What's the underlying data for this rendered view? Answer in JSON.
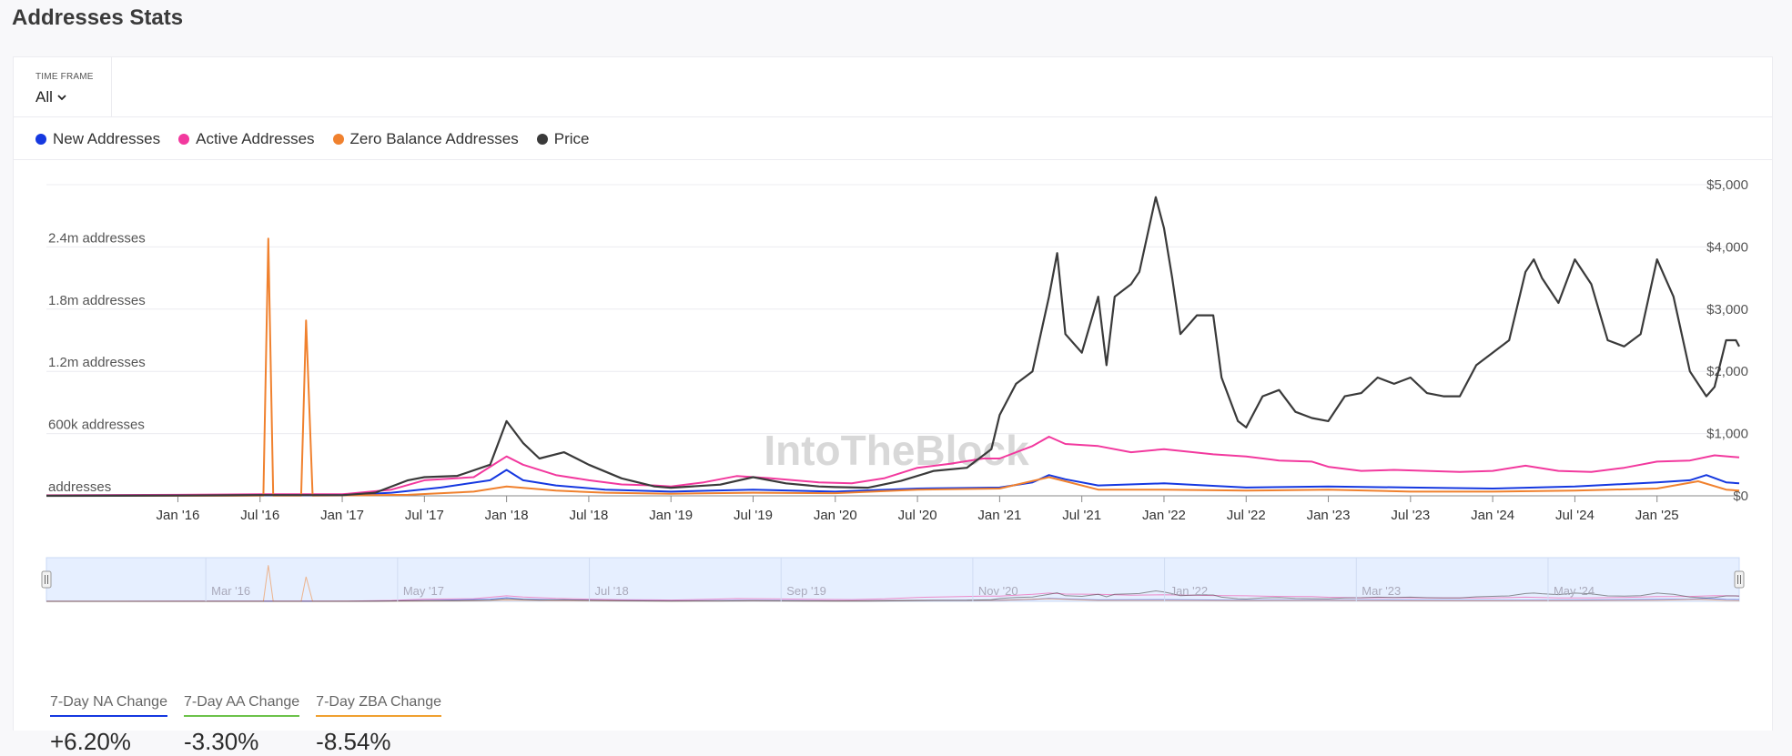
{
  "page": {
    "title": "Addresses Stats"
  },
  "time_frame": {
    "label": "TIME FRAME",
    "value": "All"
  },
  "legend": [
    {
      "label": "New Addresses",
      "color": "#1538e0"
    },
    {
      "label": "Active Addresses",
      "color": "#f2399e"
    },
    {
      "label": "Zero Balance Addresses",
      "color": "#f0812e"
    },
    {
      "label": "Price",
      "color": "#3a3a3a"
    }
  ],
  "watermark": "IntoTheBlock",
  "chart_data": {
    "type": "line",
    "x_ticks": [
      "Jan '16",
      "Jul '16",
      "Jan '17",
      "Jul '17",
      "Jan '18",
      "Jul '18",
      "Jan '19",
      "Jul '19",
      "Jan '20",
      "Jul '20",
      "Jan '21",
      "Jul '21",
      "Jan '22",
      "Jul '22",
      "Jan '23",
      "Jul '23",
      "Jan '24",
      "Jul '24",
      "Jan '25"
    ],
    "y_left": {
      "ticks": [
        "addresses",
        "600k addresses",
        "1.2m addresses",
        "1.8m addresses",
        "2.4m addresses"
      ],
      "range": [
        0,
        3000000
      ]
    },
    "y_right": {
      "ticks": [
        "$0",
        "$1,000",
        "$2,000",
        "$3,000",
        "$4,000",
        "$5,000"
      ],
      "range": [
        0,
        5000
      ]
    },
    "x_range": [
      2015.2,
      2025.5
    ],
    "series": [
      {
        "name": "Price",
        "axis": "right",
        "color": "#3a3a3a",
        "points": [
          [
            2015.2,
            0
          ],
          [
            2016.0,
            5
          ],
          [
            2016.5,
            12
          ],
          [
            2017.0,
            10
          ],
          [
            2017.2,
            50
          ],
          [
            2017.4,
            250
          ],
          [
            2017.5,
            300
          ],
          [
            2017.7,
            320
          ],
          [
            2017.9,
            500
          ],
          [
            2018.0,
            1200
          ],
          [
            2018.1,
            850
          ],
          [
            2018.2,
            600
          ],
          [
            2018.35,
            700
          ],
          [
            2018.5,
            500
          ],
          [
            2018.7,
            280
          ],
          [
            2018.9,
            150
          ],
          [
            2019.0,
            130
          ],
          [
            2019.3,
            180
          ],
          [
            2019.5,
            300
          ],
          [
            2019.7,
            200
          ],
          [
            2019.9,
            150
          ],
          [
            2020.0,
            140
          ],
          [
            2020.2,
            130
          ],
          [
            2020.4,
            240
          ],
          [
            2020.6,
            400
          ],
          [
            2020.8,
            450
          ],
          [
            2020.95,
            750
          ],
          [
            2021.0,
            1300
          ],
          [
            2021.1,
            1800
          ],
          [
            2021.2,
            2000
          ],
          [
            2021.3,
            3200
          ],
          [
            2021.35,
            3900
          ],
          [
            2021.4,
            2600
          ],
          [
            2021.5,
            2300
          ],
          [
            2021.6,
            3200
          ],
          [
            2021.65,
            2100
          ],
          [
            2021.7,
            3200
          ],
          [
            2021.8,
            3400
          ],
          [
            2021.85,
            3600
          ],
          [
            2021.9,
            4200
          ],
          [
            2021.95,
            4800
          ],
          [
            2022.0,
            4300
          ],
          [
            2022.05,
            3500
          ],
          [
            2022.1,
            2600
          ],
          [
            2022.2,
            2900
          ],
          [
            2022.3,
            2900
          ],
          [
            2022.35,
            1900
          ],
          [
            2022.45,
            1200
          ],
          [
            2022.5,
            1100
          ],
          [
            2022.6,
            1600
          ],
          [
            2022.7,
            1700
          ],
          [
            2022.8,
            1350
          ],
          [
            2022.9,
            1250
          ],
          [
            2023.0,
            1200
          ],
          [
            2023.1,
            1600
          ],
          [
            2023.2,
            1650
          ],
          [
            2023.3,
            1900
          ],
          [
            2023.4,
            1800
          ],
          [
            2023.5,
            1900
          ],
          [
            2023.6,
            1650
          ],
          [
            2023.7,
            1600
          ],
          [
            2023.8,
            1600
          ],
          [
            2023.9,
            2100
          ],
          [
            2024.0,
            2300
          ],
          [
            2024.1,
            2500
          ],
          [
            2024.2,
            3600
          ],
          [
            2024.25,
            3800
          ],
          [
            2024.3,
            3500
          ],
          [
            2024.4,
            3100
          ],
          [
            2024.5,
            3800
          ],
          [
            2024.6,
            3400
          ],
          [
            2024.7,
            2500
          ],
          [
            2024.8,
            2400
          ],
          [
            2024.9,
            2600
          ],
          [
            2025.0,
            3800
          ],
          [
            2025.05,
            3500
          ],
          [
            2025.1,
            3200
          ],
          [
            2025.2,
            2000
          ],
          [
            2025.3,
            1600
          ],
          [
            2025.35,
            1750
          ],
          [
            2025.42,
            2500
          ],
          [
            2025.48,
            2500
          ],
          [
            2025.5,
            2400
          ]
        ]
      },
      {
        "name": "Active Addresses",
        "axis": "left",
        "color": "#f2399e",
        "points": [
          [
            2015.2,
            5000
          ],
          [
            2016.0,
            10000
          ],
          [
            2016.5,
            15000
          ],
          [
            2017.0,
            15000
          ],
          [
            2017.3,
            60000
          ],
          [
            2017.5,
            150000
          ],
          [
            2017.8,
            180000
          ],
          [
            2018.0,
            380000
          ],
          [
            2018.1,
            300000
          ],
          [
            2018.3,
            200000
          ],
          [
            2018.5,
            150000
          ],
          [
            2018.7,
            110000
          ],
          [
            2018.9,
            100000
          ],
          [
            2019.0,
            90000
          ],
          [
            2019.2,
            130000
          ],
          [
            2019.4,
            190000
          ],
          [
            2019.6,
            170000
          ],
          [
            2019.9,
            130000
          ],
          [
            2020.1,
            120000
          ],
          [
            2020.3,
            170000
          ],
          [
            2020.5,
            270000
          ],
          [
            2020.7,
            310000
          ],
          [
            2020.9,
            360000
          ],
          [
            2021.0,
            360000
          ],
          [
            2021.2,
            480000
          ],
          [
            2021.3,
            570000
          ],
          [
            2021.4,
            500000
          ],
          [
            2021.6,
            480000
          ],
          [
            2021.8,
            420000
          ],
          [
            2022.0,
            450000
          ],
          [
            2022.3,
            400000
          ],
          [
            2022.5,
            380000
          ],
          [
            2022.7,
            340000
          ],
          [
            2022.9,
            330000
          ],
          [
            2023.0,
            280000
          ],
          [
            2023.2,
            240000
          ],
          [
            2023.4,
            250000
          ],
          [
            2023.6,
            240000
          ],
          [
            2023.8,
            230000
          ],
          [
            2024.0,
            240000
          ],
          [
            2024.2,
            290000
          ],
          [
            2024.4,
            240000
          ],
          [
            2024.6,
            230000
          ],
          [
            2024.8,
            270000
          ],
          [
            2025.0,
            330000
          ],
          [
            2025.2,
            340000
          ],
          [
            2025.35,
            390000
          ],
          [
            2025.5,
            370000
          ]
        ]
      },
      {
        "name": "New Addresses",
        "axis": "left",
        "color": "#1538e0",
        "points": [
          [
            2015.2,
            1000
          ],
          [
            2016.5,
            5000
          ],
          [
            2017.0,
            5000
          ],
          [
            2017.3,
            30000
          ],
          [
            2017.6,
            80000
          ],
          [
            2017.9,
            150000
          ],
          [
            2018.0,
            250000
          ],
          [
            2018.1,
            150000
          ],
          [
            2018.3,
            100000
          ],
          [
            2018.6,
            60000
          ],
          [
            2019.0,
            40000
          ],
          [
            2019.5,
            60000
          ],
          [
            2020.0,
            40000
          ],
          [
            2020.5,
            70000
          ],
          [
            2021.0,
            80000
          ],
          [
            2021.2,
            130000
          ],
          [
            2021.3,
            200000
          ],
          [
            2021.4,
            160000
          ],
          [
            2021.6,
            100000
          ],
          [
            2022.0,
            120000
          ],
          [
            2022.5,
            80000
          ],
          [
            2023.0,
            90000
          ],
          [
            2023.5,
            80000
          ],
          [
            2024.0,
            70000
          ],
          [
            2024.5,
            90000
          ],
          [
            2025.0,
            130000
          ],
          [
            2025.2,
            150000
          ],
          [
            2025.3,
            200000
          ],
          [
            2025.42,
            130000
          ],
          [
            2025.5,
            120000
          ]
        ]
      },
      {
        "name": "Zero Balance Addresses",
        "axis": "left",
        "color": "#f0812e",
        "points": [
          [
            2015.2,
            1000
          ],
          [
            2016.5,
            2000
          ],
          [
            2016.52,
            2000
          ],
          [
            2016.55,
            2480000
          ],
          [
            2016.58,
            2000
          ],
          [
            2016.75,
            2000
          ],
          [
            2016.78,
            1690000
          ],
          [
            2016.82,
            2000
          ],
          [
            2017.4,
            10000
          ],
          [
            2017.8,
            40000
          ],
          [
            2018.0,
            90000
          ],
          [
            2018.3,
            50000
          ],
          [
            2018.6,
            30000
          ],
          [
            2019.0,
            20000
          ],
          [
            2019.5,
            30000
          ],
          [
            2020.0,
            25000
          ],
          [
            2020.5,
            60000
          ],
          [
            2021.0,
            70000
          ],
          [
            2021.3,
            180000
          ],
          [
            2021.4,
            140000
          ],
          [
            2021.6,
            60000
          ],
          [
            2022.0,
            60000
          ],
          [
            2022.5,
            50000
          ],
          [
            2023.0,
            60000
          ],
          [
            2023.5,
            40000
          ],
          [
            2024.0,
            40000
          ],
          [
            2024.5,
            50000
          ],
          [
            2025.0,
            70000
          ],
          [
            2025.25,
            140000
          ],
          [
            2025.42,
            60000
          ],
          [
            2025.5,
            50000
          ]
        ]
      }
    ],
    "navigator_ticks": [
      "Mar '16",
      "May '17",
      "Jul '18",
      "Sep '19",
      "Nov '20",
      "Jan '22",
      "Mar '23",
      "May '24"
    ]
  },
  "stats": [
    {
      "label": "7-Day NA Change",
      "value": "+6.20%",
      "color": "#1538e0"
    },
    {
      "label": "7-Day AA Change",
      "value": "-3.30%",
      "color": "#6cc24a"
    },
    {
      "label": "7-Day ZBA Change",
      "value": "-8.54%",
      "color": "#f0a030"
    }
  ]
}
